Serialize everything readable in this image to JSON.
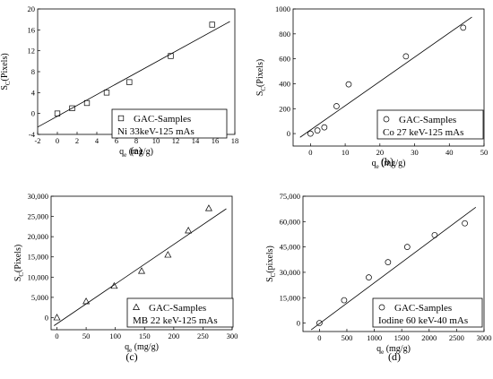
{
  "chart_data": [
    {
      "type": "scatter",
      "panel_label": "(a)",
      "xlabel": "q",
      "xlabel_sub": "e",
      "xlabel_unit": "(mg/g)",
      "ylabel": "S",
      "ylabel_sub": "C",
      "ylabel_unit": "(Pixels)",
      "xlim": [
        -2,
        18
      ],
      "ylim": [
        -4,
        20
      ],
      "xticks": [
        -2,
        0,
        2,
        4,
        6,
        8,
        10,
        12,
        14,
        16,
        18
      ],
      "xtick_labels": [
        "-2",
        "0",
        "2",
        "4",
        "6",
        "8",
        "10",
        "12",
        "14",
        "16",
        "18"
      ],
      "yticks": [
        -4,
        0,
        4,
        8,
        12,
        16,
        20
      ],
      "ytick_labels": [
        "-4",
        "0",
        "4",
        "8",
        "12",
        "16",
        "20"
      ],
      "marker": "square",
      "legend": {
        "series": "GAC-Samples",
        "condition": "Ni 33keV-125 mAs",
        "placement": "bottom-right"
      },
      "points": [
        [
          0,
          0
        ],
        [
          1.5,
          1
        ],
        [
          3,
          2
        ],
        [
          5,
          4
        ],
        [
          7.3,
          6
        ],
        [
          11.5,
          11
        ],
        [
          15.7,
          17
        ]
      ],
      "fit_line": [
        [
          -2,
          -2.6
        ],
        [
          17.5,
          17.6
        ]
      ]
    },
    {
      "type": "scatter",
      "panel_label": "(b)",
      "xlabel": "q",
      "xlabel_sub": "e",
      "xlabel_unit": "(mg/g)",
      "ylabel": "S",
      "ylabel_sub": "C",
      "ylabel_unit": "(Pixels)",
      "xlim": [
        -5,
        50
      ],
      "ylim": [
        -100,
        1000
      ],
      "xticks": [
        0,
        10,
        20,
        30,
        40,
        50
      ],
      "xtick_labels": [
        "0",
        "10",
        "20",
        "30",
        "40",
        "50"
      ],
      "yticks": [
        0,
        200,
        400,
        600,
        800,
        1000
      ],
      "ytick_labels": [
        "0",
        "200",
        "400",
        "600",
        "800",
        "1000"
      ],
      "marker": "circle",
      "legend": {
        "series": "GAC-Samples",
        "condition": "Co 27 keV-125 mAs",
        "placement": "bottom-right"
      },
      "points": [
        [
          0,
          0
        ],
        [
          2,
          25
        ],
        [
          4,
          50
        ],
        [
          7.5,
          220
        ],
        [
          11,
          395
        ],
        [
          27.5,
          620
        ],
        [
          44,
          850
        ]
      ],
      "fit_line": [
        [
          -3,
          -30
        ],
        [
          46.5,
          935
        ]
      ]
    },
    {
      "type": "scatter",
      "panel_label": "(c)",
      "xlabel": "q",
      "xlabel_sub": "e",
      "xlabel_unit": "(mg/g)",
      "ylabel": "S",
      "ylabel_sub": "C",
      "ylabel_unit": "(Pixels)",
      "xlim": [
        -10,
        300
      ],
      "ylim": [
        -3000,
        30000
      ],
      "xticks": [
        0,
        50,
        100,
        150,
        200,
        250,
        300
      ],
      "xtick_labels": [
        "0",
        "50",
        "100",
        "150",
        "200",
        "250",
        "300"
      ],
      "yticks": [
        0,
        5000,
        10000,
        15000,
        20000,
        25000,
        30000
      ],
      "ytick_labels": [
        "0",
        "5,000",
        "10,000",
        "15,000",
        "20,000",
        "25,000",
        "30,000"
      ],
      "marker": "triangle",
      "legend": {
        "series": "GAC-Samples",
        "condition": "MB 22 keV-125 mAs",
        "placement": "bottom-right"
      },
      "points": [
        [
          0,
          0
        ],
        [
          50,
          4000
        ],
        [
          98,
          7800
        ],
        [
          145,
          11500
        ],
        [
          190,
          15500
        ],
        [
          225,
          21500
        ],
        [
          260,
          27000
        ]
      ],
      "fit_line": [
        [
          -5,
          -2000
        ],
        [
          290,
          26900
        ]
      ]
    },
    {
      "type": "scatter",
      "panel_label": "(d)",
      "xlabel": "q",
      "xlabel_sub": "e",
      "xlabel_unit": "(mg/g)",
      "ylabel": "S",
      "ylabel_sub": "C",
      "ylabel_unit": "(pixels)",
      "xlim": [
        -300,
        3000
      ],
      "ylim": [
        -5000,
        75000
      ],
      "xticks": [
        0,
        500,
        1000,
        1500,
        2000,
        2500,
        3000
      ],
      "xtick_labels": [
        "0",
        "500",
        "1000",
        "1500",
        "2000",
        "2500",
        "3000"
      ],
      "yticks": [
        0,
        15000,
        30000,
        45000,
        60000,
        75000
      ],
      "ytick_labels": [
        "0",
        "15,000",
        "30,000",
        "45,000",
        "60,000",
        "75,000"
      ],
      "marker": "circle",
      "legend": {
        "series": "GAC-Samples",
        "condition": "Iodine 60 keV-40 mAs",
        "placement": "bottom-right"
      },
      "points": [
        [
          0,
          0
        ],
        [
          450,
          13500
        ],
        [
          900,
          27000
        ],
        [
          1250,
          36000
        ],
        [
          1600,
          45000
        ],
        [
          2100,
          52000
        ],
        [
          2650,
          59000
        ]
      ],
      "fit_line": [
        [
          -150,
          -4000
        ],
        [
          2850,
          68500
        ]
      ]
    }
  ]
}
